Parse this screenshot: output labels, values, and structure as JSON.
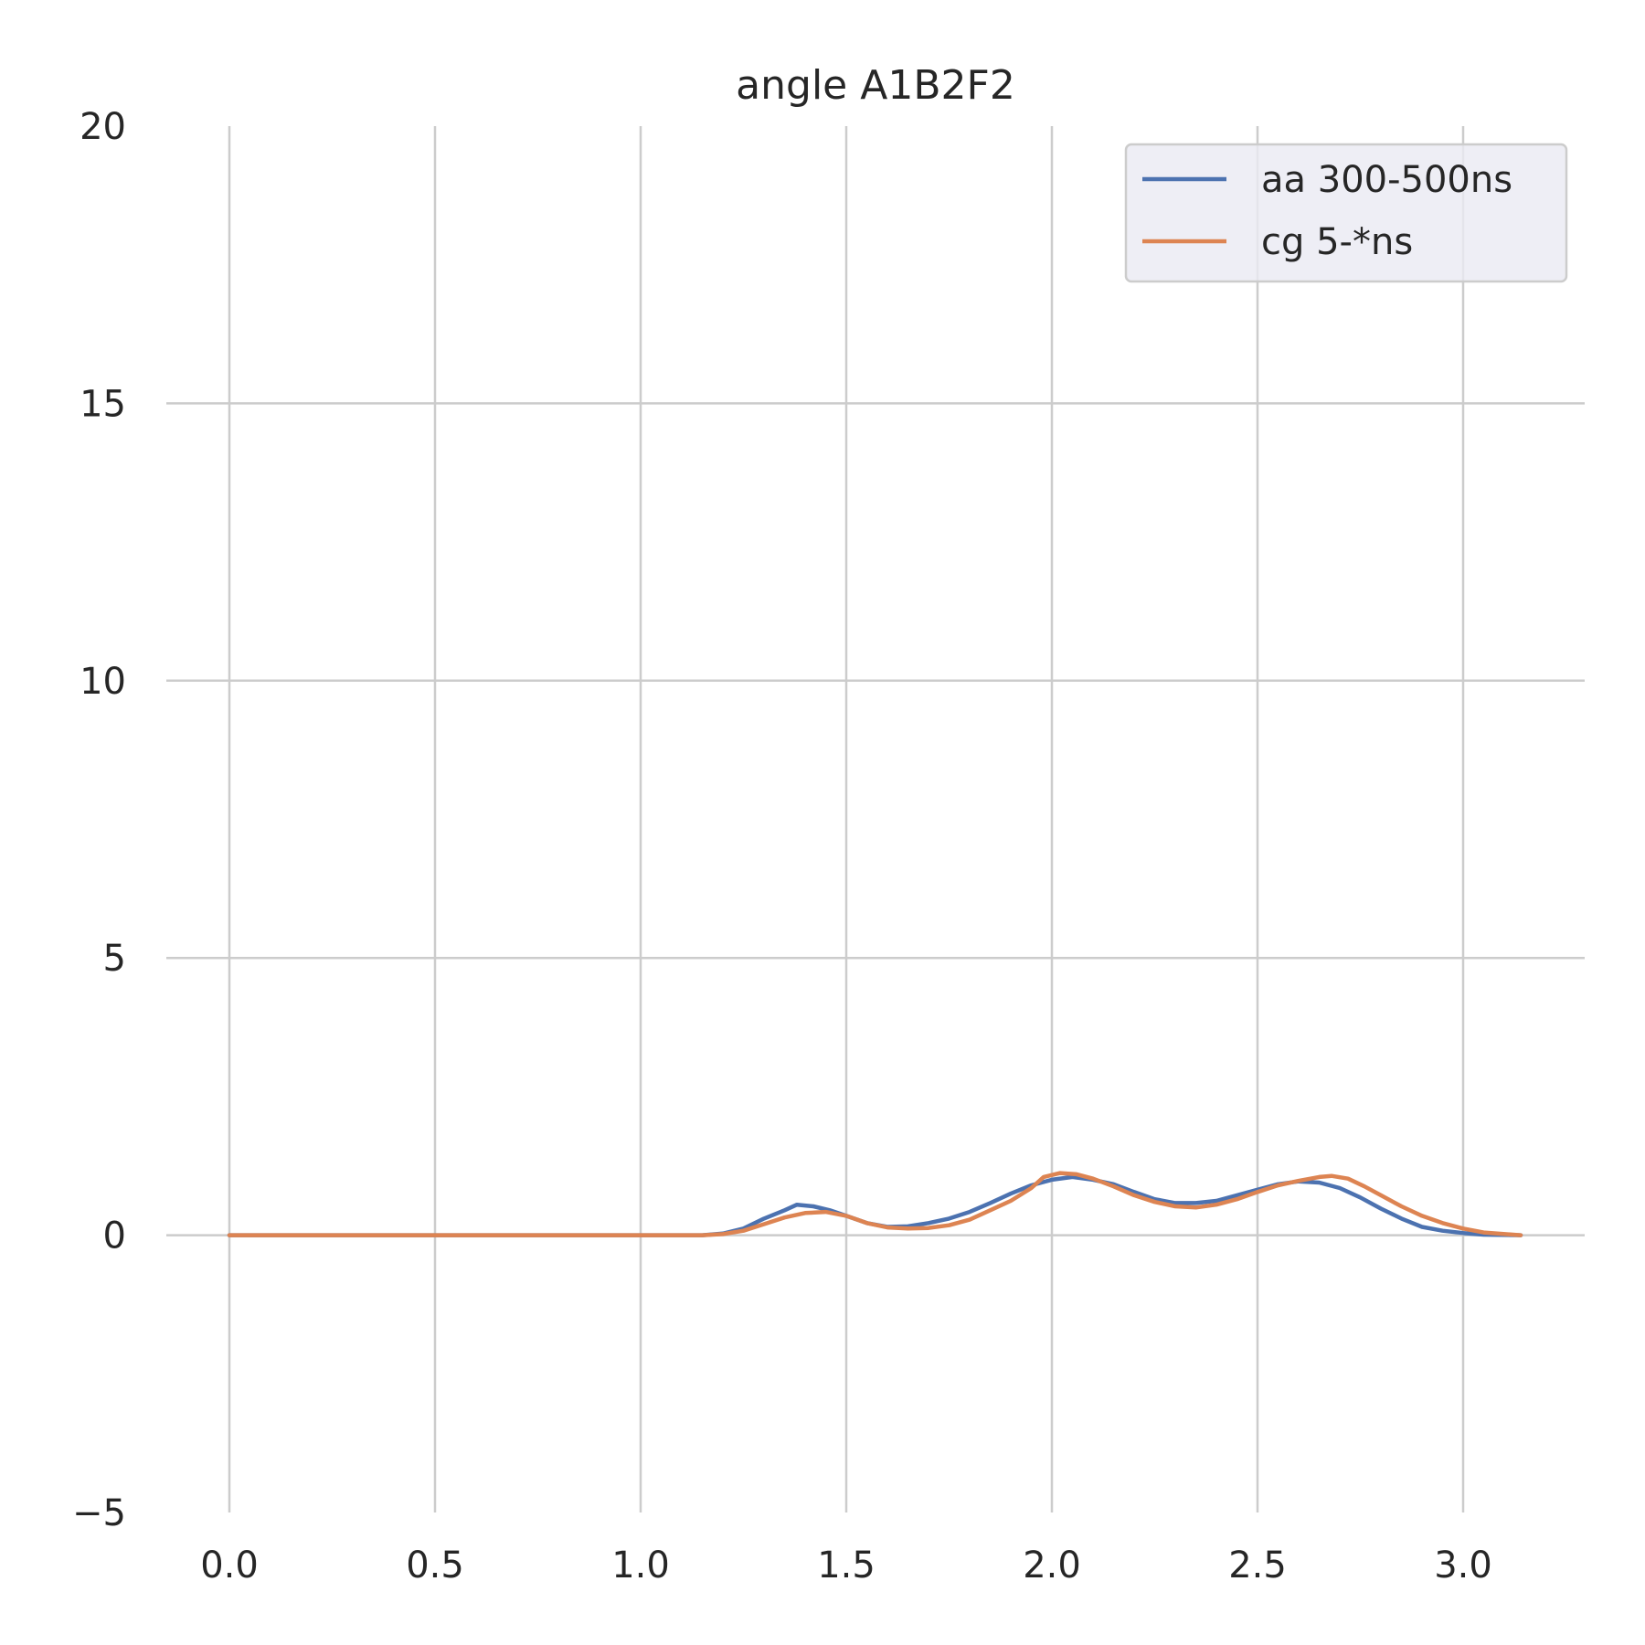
{
  "chart_data": {
    "type": "line",
    "title": "angle A1B2F2",
    "xlabel": "",
    "ylabel": "",
    "xlim": [
      -0.157,
      3.3
    ],
    "ylim": [
      -5,
      20
    ],
    "xticks": [
      0.0,
      0.5,
      1.0,
      1.5,
      2.0,
      2.5,
      3.0
    ],
    "xtick_labels": [
      "0.0",
      "0.5",
      "1.0",
      "1.5",
      "2.0",
      "2.5",
      "3.0"
    ],
    "yticks": [
      -5,
      0,
      5,
      10,
      15,
      20
    ],
    "ytick_labels": [
      "−5",
      "0",
      "5",
      "10",
      "15",
      "20"
    ],
    "grid": true,
    "legend_position": "top-right",
    "series": [
      {
        "name": "aa 300-500ns",
        "color": "#4c72b0",
        "x": [
          0.0,
          0.5,
          1.0,
          1.15,
          1.2,
          1.25,
          1.3,
          1.35,
          1.38,
          1.42,
          1.46,
          1.5,
          1.55,
          1.6,
          1.65,
          1.7,
          1.75,
          1.8,
          1.85,
          1.9,
          1.95,
          2.0,
          2.05,
          2.1,
          2.15,
          2.2,
          2.25,
          2.3,
          2.35,
          2.4,
          2.45,
          2.5,
          2.55,
          2.6,
          2.65,
          2.7,
          2.75,
          2.8,
          2.85,
          2.9,
          2.95,
          3.0,
          3.05,
          3.14
        ],
        "y": [
          0.0,
          0.0,
          0.0,
          0.0,
          0.03,
          0.12,
          0.3,
          0.45,
          0.55,
          0.52,
          0.45,
          0.35,
          0.22,
          0.15,
          0.16,
          0.22,
          0.3,
          0.42,
          0.58,
          0.75,
          0.9,
          1.0,
          1.05,
          1.0,
          0.92,
          0.78,
          0.65,
          0.58,
          0.58,
          0.62,
          0.72,
          0.82,
          0.92,
          0.97,
          0.95,
          0.85,
          0.68,
          0.48,
          0.3,
          0.15,
          0.08,
          0.04,
          0.01,
          0.0
        ]
      },
      {
        "name": "cg 5-*ns",
        "color": "#dd8452",
        "x": [
          0.0,
          0.5,
          1.0,
          1.15,
          1.2,
          1.25,
          1.3,
          1.35,
          1.4,
          1.45,
          1.5,
          1.55,
          1.6,
          1.65,
          1.7,
          1.75,
          1.8,
          1.85,
          1.9,
          1.95,
          1.98,
          2.02,
          2.06,
          2.1,
          2.15,
          2.2,
          2.25,
          2.3,
          2.35,
          2.4,
          2.45,
          2.5,
          2.55,
          2.6,
          2.65,
          2.68,
          2.72,
          2.76,
          2.8,
          2.85,
          2.9,
          2.95,
          3.0,
          3.05,
          3.14
        ],
        "y": [
          0.0,
          0.0,
          0.0,
          0.0,
          0.02,
          0.08,
          0.2,
          0.32,
          0.4,
          0.42,
          0.35,
          0.22,
          0.14,
          0.12,
          0.13,
          0.18,
          0.28,
          0.45,
          0.62,
          0.85,
          1.05,
          1.12,
          1.1,
          1.02,
          0.88,
          0.72,
          0.6,
          0.52,
          0.5,
          0.55,
          0.65,
          0.78,
          0.9,
          0.98,
          1.05,
          1.07,
          1.02,
          0.88,
          0.72,
          0.52,
          0.35,
          0.22,
          0.12,
          0.05,
          0.0
        ]
      }
    ]
  }
}
